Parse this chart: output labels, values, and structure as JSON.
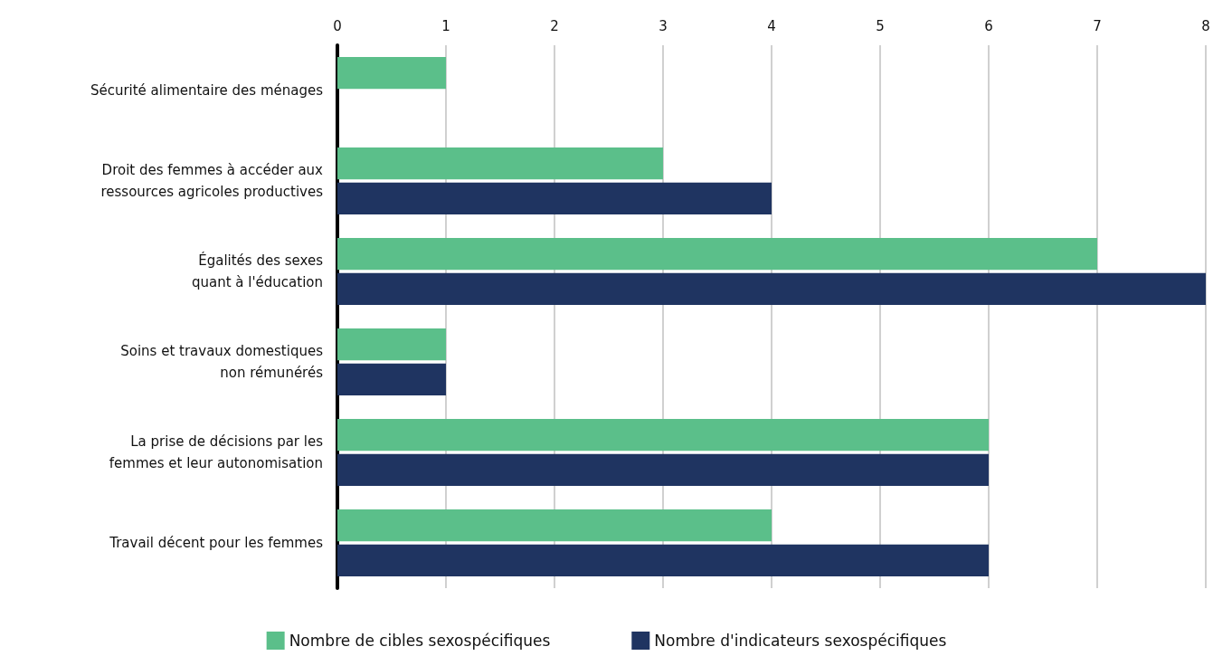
{
  "chart_data": {
    "type": "bar",
    "orientation": "horizontal",
    "categories": [
      "Sécurité alimentaire des ménages",
      "Droit des femmes à accéder aux\nressources agricoles productives",
      "Égalités des sexes\nquant à l'éducation",
      "Soins et travaux domestiques\nnon rémunérés",
      "La prise de décisions par les\nfemmes et leur autonomisation",
      "Travail décent pour les femmes"
    ],
    "series": [
      {
        "name": "Nombre de cibles sexospécifiques",
        "color": "#5bbf8a",
        "values": [
          1,
          3,
          7,
          1,
          6,
          4
        ]
      },
      {
        "name": "Nombre d'indicateurs sexospécifiques",
        "color": "#1f3461",
        "values": [
          null,
          4,
          8,
          1,
          6,
          6
        ]
      }
    ],
    "xlim": [
      0,
      8
    ],
    "xticks": [
      0,
      1,
      2,
      3,
      4,
      5,
      6,
      7,
      8
    ],
    "grid": "x",
    "legend": "bottom"
  }
}
